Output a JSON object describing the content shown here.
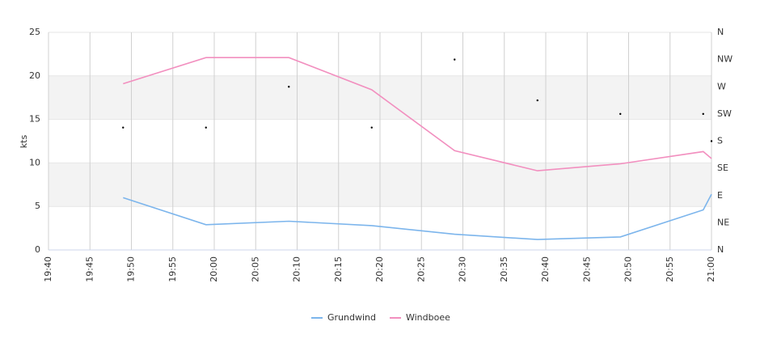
{
  "chart_data": {
    "type": "line",
    "y_label": "kts",
    "x": [
      "19:49",
      "19:59",
      "20:09",
      "20:19",
      "20:29",
      "20:39",
      "20:49",
      "20:59",
      "21:00"
    ],
    "xlim": [
      "19:40",
      "21:00"
    ],
    "xticks": [
      "19:40",
      "19:45",
      "19:50",
      "19:55",
      "20:00",
      "20:05",
      "20:10",
      "20:15",
      "20:20",
      "20:25",
      "20:30",
      "20:35",
      "20:40",
      "20:45",
      "20:50",
      "20:55",
      "21:00"
    ],
    "ylim": [
      0,
      25
    ],
    "yticks": [
      0,
      5,
      10,
      15,
      20,
      25
    ],
    "y2lim": [
      0,
      360
    ],
    "y2ticks": [
      {
        "value": 0,
        "label": "N"
      },
      {
        "value": 45,
        "label": "NE"
      },
      {
        "value": 90,
        "label": "E"
      },
      {
        "value": 135,
        "label": "SE"
      },
      {
        "value": 180,
        "label": "S"
      },
      {
        "value": 225,
        "label": "SW"
      },
      {
        "value": 270,
        "label": "W"
      },
      {
        "value": 315,
        "label": "NW"
      },
      {
        "value": 360,
        "label": "N"
      }
    ],
    "grid": true,
    "legend": "bottom",
    "series": [
      {
        "name": "Grundwind",
        "color": "#7cb5ec",
        "values": [
          6.0,
          2.9,
          3.3,
          2.8,
          1.8,
          1.2,
          1.5,
          4.6,
          6.4
        ]
      },
      {
        "name": "Windboee",
        "color": "#f28fbf",
        "values": [
          19.1,
          22.1,
          22.1,
          18.4,
          11.4,
          9.1,
          9.9,
          11.3,
          10.5
        ]
      },
      {
        "type": "scatter",
        "axis": "y2",
        "color": "#000000",
        "values": [
          202.5,
          202.5,
          270,
          202.5,
          315,
          247.5,
          225,
          225,
          180
        ]
      }
    ]
  }
}
